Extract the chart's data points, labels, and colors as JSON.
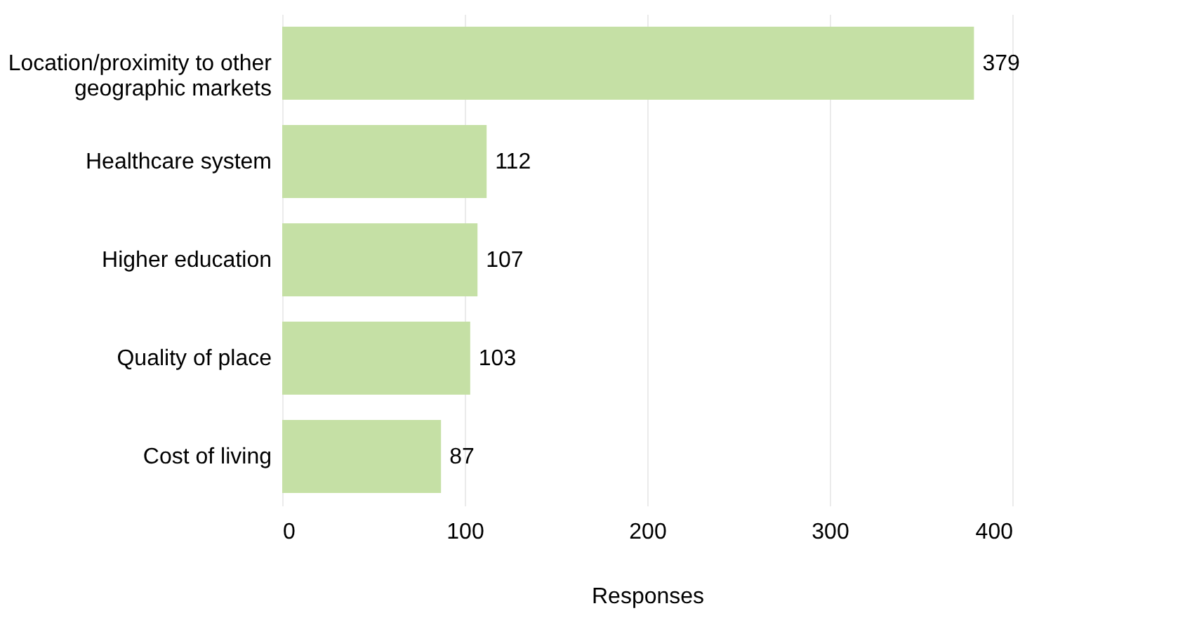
{
  "chart_data": {
    "type": "bar",
    "orientation": "horizontal",
    "xlabel": "Responses",
    "categories": [
      "Location/proximity to other geographic markets",
      "Healthcare system",
      "Higher education",
      "Quality of place",
      "Cost of living"
    ],
    "values": [
      379,
      112,
      107,
      103,
      87
    ],
    "color": "#c5e0a5",
    "data_labels": true,
    "xlim": [
      0,
      400
    ],
    "xticks": [
      0,
      100,
      200,
      300,
      400
    ],
    "grid": "x"
  }
}
